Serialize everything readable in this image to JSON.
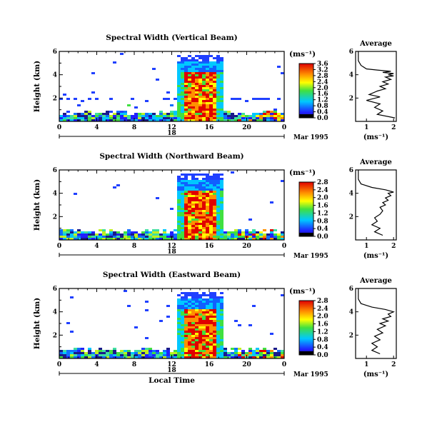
{
  "figure": {
    "date_label": "Mar 1995",
    "day_label": "18",
    "xlabel": "Local Time",
    "colorbar_unit": "(ms⁻¹)",
    "average_title": "Average",
    "average_xunit": "(ms⁻¹)"
  },
  "chart_data": [
    {
      "type": "heatmap",
      "title": "Spectral Width (Vertical Beam)",
      "ylabel": "Height (km)",
      "xlabel": "",
      "xlim": [
        0,
        24
      ],
      "xticks": [
        "0",
        "4",
        "8",
        "12",
        "16",
        "20",
        "0"
      ],
      "ylim": [
        0,
        6
      ],
      "yticks": [
        "2",
        "4",
        "6"
      ],
      "colorbar": {
        "ticks": [
          "0.0",
          "0.4",
          "0.8",
          "1.2",
          "1.6",
          "2.0",
          "2.4",
          "2.8",
          "3.2",
          "3.6"
        ],
        "range": [
          0,
          3.6
        ]
      },
      "average": {
        "type": "line",
        "xlim": [
          0.6,
          2.1
        ],
        "xticks": [
          "1",
          "2"
        ],
        "ylim": [
          0,
          6
        ],
        "yticks": [
          "2",
          "4",
          "6"
        ],
        "x": [
          2.05,
          1.4,
          1.6,
          1.3,
          1.5,
          1.0,
          1.5,
          1.1,
          1.4,
          1.7,
          1.5,
          1.8,
          1.6,
          1.9,
          1.7,
          2.0,
          1.8,
          2.0,
          1.6,
          1.9,
          1.4,
          1.0,
          0.8,
          0.7,
          0.7,
          0.7
        ],
        "y": [
          0.3,
          0.6,
          0.9,
          1.2,
          1.5,
          1.8,
          2.1,
          2.3,
          2.6,
          2.8,
          3.0,
          3.2,
          3.4,
          3.6,
          3.8,
          3.9,
          4.0,
          4.1,
          4.2,
          4.3,
          4.4,
          4.5,
          4.8,
          5.2,
          5.6,
          6.0
        ]
      }
    },
    {
      "type": "heatmap",
      "title": "Spectral Width (Northward Beam)",
      "ylabel": "Height (km)",
      "xlabel": "",
      "xlim": [
        0,
        24
      ],
      "xticks": [
        "0",
        "4",
        "8",
        "12",
        "16",
        "20",
        "0"
      ],
      "ylim": [
        0,
        6
      ],
      "yticks": [
        "2",
        "4",
        "6"
      ],
      "colorbar": {
        "ticks": [
          "0.0",
          "0.4",
          "0.8",
          "1.2",
          "1.6",
          "2.0",
          "2.4",
          "2.8"
        ],
        "range": [
          0,
          2.8
        ]
      },
      "average": {
        "type": "line",
        "xlim": [
          0.6,
          2.1
        ],
        "xticks": [
          "1",
          "2"
        ],
        "ylim": [
          0,
          6
        ],
        "yticks": [
          "2",
          "4",
          "6"
        ],
        "x": [
          1.6,
          1.3,
          1.5,
          1.2,
          1.4,
          1.3,
          1.5,
          1.6,
          1.5,
          1.7,
          1.6,
          1.8,
          1.7,
          1.9,
          1.8,
          2.0,
          1.7,
          1.2,
          0.8,
          0.7,
          0.7,
          0.7
        ],
        "y": [
          0.4,
          0.7,
          1.0,
          1.3,
          1.6,
          1.9,
          2.2,
          2.5,
          2.8,
          3.0,
          3.2,
          3.4,
          3.6,
          3.8,
          4.0,
          4.1,
          4.3,
          4.5,
          4.8,
          5.2,
          5.6,
          6.0
        ]
      }
    },
    {
      "type": "heatmap",
      "title": "Spectral Width (Eastward Beam)",
      "ylabel": "Height (km)",
      "xlabel": "Local Time",
      "xlim": [
        0,
        24
      ],
      "xticks": [
        "0",
        "4",
        "8",
        "12",
        "16",
        "20",
        "0"
      ],
      "ylim": [
        0,
        6
      ],
      "yticks": [
        "2",
        "4",
        "6"
      ],
      "colorbar": {
        "ticks": [
          "0.0",
          "0.4",
          "0.8",
          "1.2",
          "1.6",
          "2.0",
          "2.4",
          "2.8"
        ],
        "range": [
          0,
          2.8
        ]
      },
      "average": {
        "type": "line",
        "xlim": [
          0.6,
          2.1
        ],
        "xticks": [
          "1",
          "2"
        ],
        "ylim": [
          0,
          6
        ],
        "yticks": [
          "2",
          "4",
          "6"
        ],
        "x": [
          1.5,
          1.2,
          1.4,
          1.2,
          1.5,
          1.3,
          1.6,
          1.4,
          1.7,
          1.5,
          1.8,
          1.6,
          1.9,
          1.8,
          2.0,
          1.7,
          1.2,
          0.8,
          0.7,
          0.7,
          0.7
        ],
        "y": [
          0.4,
          0.7,
          1.0,
          1.3,
          1.6,
          1.9,
          2.2,
          2.5,
          2.8,
          3.0,
          3.2,
          3.4,
          3.6,
          3.8,
          4.0,
          4.2,
          4.4,
          4.7,
          5.1,
          5.5,
          6.0
        ]
      }
    }
  ]
}
